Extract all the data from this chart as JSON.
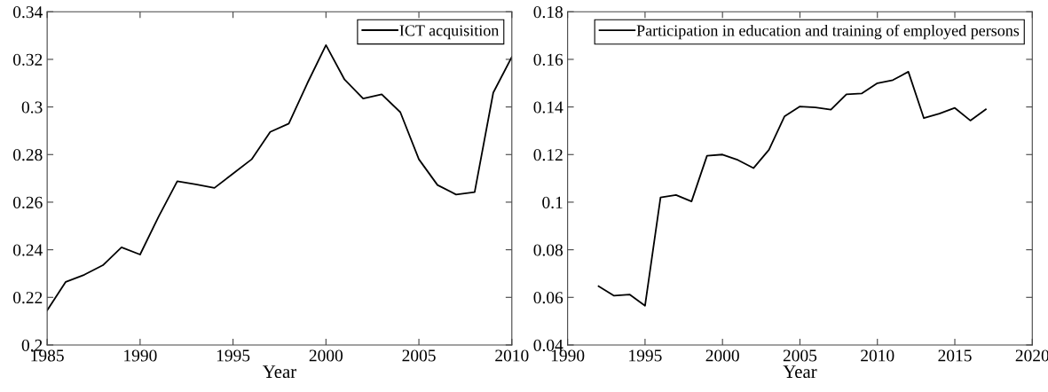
{
  "chart_data": [
    {
      "type": "line",
      "xlabel": "Year",
      "x": [
        1985,
        1986,
        1987,
        1988,
        1989,
        1990,
        1991,
        1992,
        1993,
        1994,
        1995,
        1996,
        1997,
        1998,
        1999,
        2000,
        2001,
        2002,
        2003,
        2004,
        2005,
        2006,
        2007,
        2008,
        2009,
        2010
      ],
      "series": [
        {
          "name": "ICT acquisition",
          "color": "#000000",
          "values": [
            0.2145,
            0.2265,
            0.2295,
            0.2335,
            0.241,
            0.238,
            0.254,
            0.2688,
            0.2675,
            0.266,
            0.272,
            0.278,
            0.2895,
            0.293,
            0.31,
            0.326,
            0.3115,
            0.3035,
            0.3053,
            0.2978,
            0.278,
            0.2672,
            0.2632,
            0.2642,
            0.306,
            0.321
          ]
        }
      ],
      "xlim": [
        1985,
        2010
      ],
      "xticks": [
        1985,
        1990,
        1995,
        2000,
        2005,
        2010
      ],
      "ylim": [
        0.2,
        0.34
      ],
      "yticks": [
        0.2,
        0.22,
        0.24,
        0.26,
        0.28,
        0.3,
        0.32,
        0.34
      ],
      "legend": "top right",
      "grid": false
    },
    {
      "type": "line",
      "xlabel": "Year",
      "x": [
        1992,
        1993,
        1994,
        1995,
        1996,
        1997,
        1998,
        1999,
        2000,
        2001,
        2002,
        2003,
        2004,
        2005,
        2006,
        2007,
        2008,
        2009,
        2010,
        2011,
        2012,
        2013,
        2014,
        2015,
        2016,
        2017
      ],
      "series": [
        {
          "name": "Participation in education and training of employed persons",
          "color": "#000000",
          "values": [
            0.0647,
            0.0607,
            0.0612,
            0.0565,
            0.102,
            0.103,
            0.1003,
            0.1195,
            0.12,
            0.1177,
            0.1143,
            0.122,
            0.136,
            0.1402,
            0.1398,
            0.1389,
            0.1453,
            0.1457,
            0.15,
            0.1513,
            0.1548,
            0.1353,
            0.1372,
            0.1396,
            0.1343,
            0.139
          ]
        }
      ],
      "xlim": [
        1990,
        2020
      ],
      "xticks": [
        1990,
        1995,
        2000,
        2005,
        2010,
        2015,
        2020
      ],
      "ylim": [
        0.04,
        0.18
      ],
      "yticks": [
        0.04,
        0.06,
        0.08,
        0.1,
        0.12,
        0.14,
        0.16,
        0.18
      ],
      "legend": "top right",
      "grid": false
    }
  ]
}
